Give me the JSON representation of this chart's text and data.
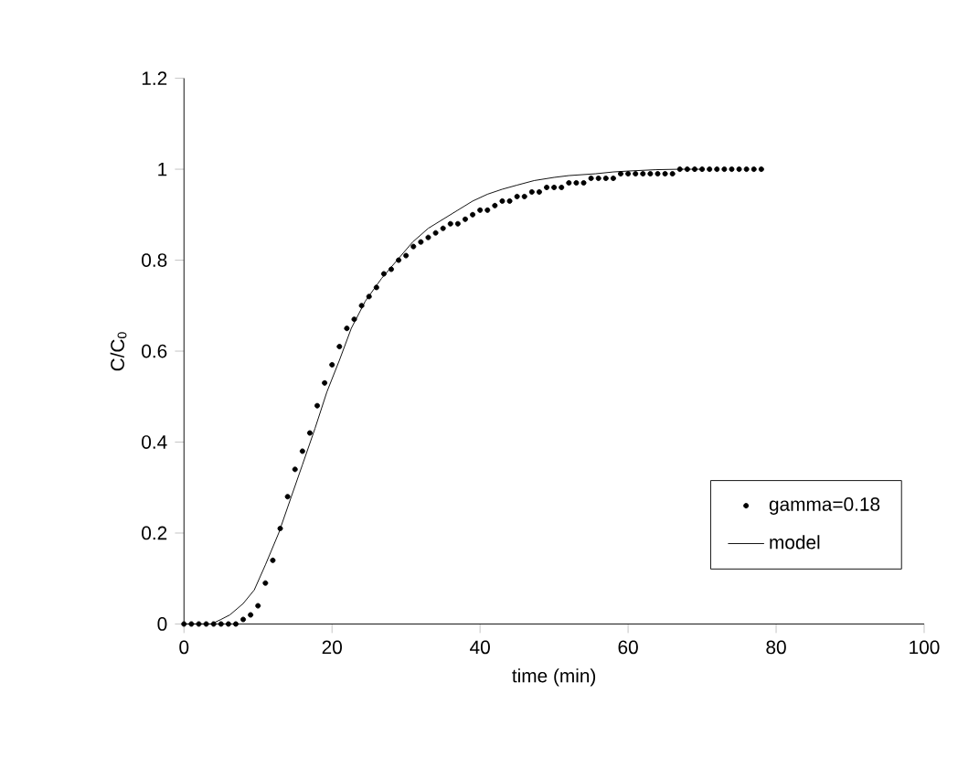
{
  "chart_data": {
    "type": "line",
    "xlabel": "time (min)",
    "ylabel": "C/C$_{0}$",
    "xlim": [
      0,
      100
    ],
    "ylim": [
      0,
      1.2
    ],
    "xticks": [
      0,
      20,
      40,
      60,
      80,
      100
    ],
    "yticks": [
      0,
      0.2,
      0.4,
      0.6,
      0.8,
      1,
      1.2
    ],
    "legend": "bottom right",
    "grid": false,
    "series": [
      {
        "name": "gamma=0.18",
        "type": "scatter",
        "marker": "circle",
        "color": "#000000",
        "x": [
          0,
          1,
          2,
          3,
          4,
          5,
          6,
          7,
          8,
          9,
          10,
          11,
          12,
          13,
          14,
          15,
          16,
          17,
          18,
          19,
          20,
          21,
          22,
          23,
          24,
          25,
          26,
          27,
          28,
          29,
          30,
          31,
          32,
          33,
          34,
          35,
          36,
          37,
          38,
          39,
          40,
          41,
          42,
          43,
          44,
          45,
          46,
          47,
          48,
          49,
          50,
          51,
          52,
          53,
          54,
          55,
          56,
          57,
          58,
          59,
          60,
          61,
          62,
          63,
          64,
          65,
          66,
          67,
          68,
          69,
          70,
          71,
          72,
          73,
          74,
          75,
          76,
          77,
          78
        ],
        "values": [
          0,
          0,
          0,
          0,
          0,
          0,
          0,
          0,
          0.01,
          0.02,
          0.04,
          0.09,
          0.14,
          0.21,
          0.28,
          0.34,
          0.38,
          0.42,
          0.48,
          0.53,
          0.57,
          0.61,
          0.65,
          0.67,
          0.7,
          0.72,
          0.74,
          0.77,
          0.78,
          0.8,
          0.81,
          0.83,
          0.84,
          0.85,
          0.86,
          0.87,
          0.88,
          0.88,
          0.89,
          0.9,
          0.91,
          0.91,
          0.92,
          0.93,
          0.93,
          0.94,
          0.94,
          0.95,
          0.95,
          0.96,
          0.96,
          0.96,
          0.97,
          0.97,
          0.97,
          0.98,
          0.98,
          0.98,
          0.98,
          0.99,
          0.99,
          0.99,
          0.99,
          0.99,
          0.99,
          0.99,
          0.99,
          1,
          1,
          1,
          1,
          1,
          1,
          1,
          1,
          1,
          1,
          1,
          1
        ]
      },
      {
        "name": "model",
        "type": "line",
        "marker": "none",
        "line_style": "solid",
        "color": "#000000",
        "x": [
          0,
          2,
          3.7,
          5,
          6.2,
          8,
          9.5,
          11,
          12.8,
          14.5,
          16,
          17.7,
          19.3,
          21,
          22.6,
          24.5,
          26.7,
          28.8,
          30.9,
          33,
          35,
          37,
          39,
          41,
          43,
          45,
          47.3,
          50,
          52,
          55.6,
          58,
          60,
          63.8,
          67,
          70
        ],
        "values": [
          0,
          0,
          0,
          0.01,
          0.02,
          0.045,
          0.075,
          0.13,
          0.2,
          0.28,
          0.35,
          0.43,
          0.51,
          0.58,
          0.65,
          0.71,
          0.76,
          0.8,
          0.84,
          0.87,
          0.89,
          0.91,
          0.93,
          0.945,
          0.956,
          0.965,
          0.975,
          0.982,
          0.986,
          0.99,
          0.994,
          0.996,
          0.999,
          1,
          1
        ]
      }
    ]
  }
}
